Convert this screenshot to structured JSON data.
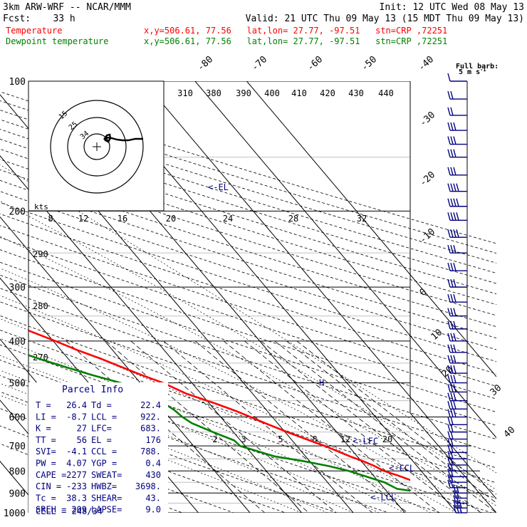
{
  "header": {
    "line1_left": "3km ARW-WRF -- NCAR/MMM",
    "line1_right": "Init: 12 UTC Wed 08 May 13",
    "line2_left": "Fcst:    33 h",
    "line2_right": "Valid: 21 UTC Thu 09 May 13 (15 MDT Thu 09 May 13)",
    "temp_label": "Temperature",
    "temp_info": "x,y=506.61, 77.56   lat,lon= 27.77, -97.51   stn=CRP ,72251",
    "dew_label": "Dewpoint temperature",
    "dew_info": "x,y=506.61, 77.56   lat,lon= 27.77, -97.51   stn=CRP ,72251"
  },
  "colors": {
    "temperature": "#ff0000",
    "dewpoint": "#008000",
    "barbs": "#000080",
    "text": "#000000",
    "lines": "#000000",
    "light": "#888888"
  },
  "barb_key": {
    "title": "Full barb:",
    "unit": "5 m s",
    "exp": "-1"
  },
  "hodograph": {
    "unit_label": "kts",
    "ring_labels": [
      "15",
      "25",
      "34"
    ],
    "center_icon": "crosshair-icon"
  },
  "parcel_info": {
    "title": "Parcel Info",
    "rows": [
      [
        "T  =",
        "26.4",
        "Td =",
        "22.4"
      ],
      [
        "LI =",
        "-8.7",
        "LCL =",
        "922."
      ],
      [
        "K  =",
        "27",
        "LFC=",
        "683."
      ],
      [
        "TT =",
        "56",
        "EL =",
        "176"
      ],
      [
        "SVI=",
        "-4.1",
        "CCL =",
        "788."
      ],
      [
        "PW =",
        "4.07",
        "YGP =",
        "0.4"
      ],
      [
        "CAPE =",
        "2277",
        "SWEAT=",
        "430"
      ],
      [
        "CIN =",
        "-233",
        "HWBZ=",
        "3698."
      ],
      [
        "Tc =",
        "38.3",
        "SHEAR=",
        "43."
      ],
      [
        "SREH =",
        "209",
        "LAPSE=",
        "9.0"
      ]
    ],
    "last_row": "CELL = 248/34"
  },
  "level_labels": {
    "el": "<-EL",
    "lfc": "<-LFC",
    "ccl": "<-CCL",
    "lcl": "<-LCL",
    "marker_h": "H"
  },
  "chart_data": {
    "type": "line",
    "chart_kind": "skew-T log-p sounding",
    "yaxis": {
      "scale": "log-pressure",
      "unit": "hPa",
      "range": [
        1000,
        100
      ],
      "ticks": [
        100,
        200,
        300,
        400,
        500,
        600,
        700,
        800,
        900,
        1000
      ]
    },
    "isotherm_labels": [
      -80,
      -70,
      -60,
      -50,
      -40,
      -30,
      -20,
      -10,
      0,
      10,
      20,
      30,
      40
    ],
    "theta_e_labels": [
      310,
      380,
      390,
      400,
      410,
      420,
      430,
      440
    ],
    "mixing_ratio_labels_top": [
      8,
      12,
      16,
      20,
      24,
      28,
      32
    ],
    "mixing_ratio_labels_low": [
      2,
      3,
      5,
      8,
      12,
      20
    ],
    "dry_adiabat_labels": [
      290,
      280,
      270
    ],
    "series": [
      {
        "name": "Temperature",
        "pressure": [
          1000,
          985,
          970,
          950,
          925,
          900,
          880,
          850,
          820,
          800,
          780,
          760,
          740,
          700,
          680,
          650,
          620,
          600,
          580,
          560,
          530,
          500,
          480,
          460,
          440,
          420,
          400,
          380,
          360,
          340,
          320,
          300,
          280,
          260,
          240,
          220,
          200,
          180,
          160,
          150,
          140,
          130,
          120,
          110,
          100
        ],
        "values": [
          29.0,
          26.2,
          24.6,
          22.5,
          21.4,
          19.8,
          18.6,
          17.2,
          14.8,
          12.8,
          11.8,
          10.4,
          8.6,
          5.4,
          3.4,
          0.4,
          -2.4,
          -4.2,
          -6.2,
          -8.6,
          -12.8,
          -15.6,
          -18.4,
          -21.0,
          -23.6,
          -26.8,
          -29.6,
          -32.8,
          -36.0,
          -39.8,
          -43.4,
          -47.2,
          -51.8,
          -56.0,
          -60.6,
          -65.2,
          -69.0,
          -71.8,
          -70.0,
          -68.0,
          -65.0,
          -63.0,
          -60.0,
          -57.5,
          -55.0
        ]
      },
      {
        "name": "Dewpoint temperature",
        "pressure": [
          1000,
          985,
          970,
          950,
          925,
          900,
          880,
          850,
          820,
          800,
          780,
          760,
          740,
          700,
          680,
          650,
          620,
          600,
          580,
          560,
          530,
          500,
          480,
          460,
          440,
          420,
          400,
          380,
          360,
          340,
          320,
          300,
          280,
          260,
          240,
          220,
          200,
          180,
          160,
          150,
          140,
          130,
          120,
          110,
          100
        ],
        "values": [
          22.5,
          20.0,
          20.8,
          18.8,
          18.4,
          17.4,
          12.4,
          11.0,
          8.0,
          6.0,
          3.0,
          -1.0,
          -6.0,
          -11.0,
          -11.2,
          -14.0,
          -16.6,
          -17.4,
          -17.8,
          -18.6,
          -21.2,
          -23.8,
          -28.0,
          -31.8,
          -35.6,
          -39.2,
          -42.6,
          -45.8,
          -48.6,
          -52.8,
          -57.8,
          -61.6,
          -69.6,
          -74.0,
          -76.0,
          -76.0,
          -76.5,
          -77.0,
          -79.0,
          -80.0,
          -81.0,
          -81.5,
          -82.0,
          -82.5,
          -83.0
        ]
      }
    ],
    "wind_barbs": {
      "note": "right column, one barb per level from 1000 to 100 hPa; flags count full barbs (5 m/s each)",
      "pressure": [
        1000,
        975,
        950,
        925,
        900,
        875,
        850,
        825,
        800,
        775,
        750,
        725,
        700,
        675,
        650,
        625,
        600,
        575,
        550,
        525,
        500,
        475,
        450,
        425,
        400,
        375,
        350,
        325,
        300,
        275,
        250,
        230,
        210,
        195,
        180,
        165,
        150,
        140,
        130,
        120,
        110,
        100
      ],
      "full_barbs": [
        3,
        3,
        2,
        2,
        2,
        2,
        2,
        2,
        2,
        2,
        2,
        2,
        2,
        2,
        2,
        2,
        3,
        3,
        3,
        3,
        3,
        3,
        3,
        3,
        3,
        3,
        3,
        3,
        3,
        3,
        3,
        4,
        4,
        4,
        4,
        3,
        3,
        3,
        3,
        2,
        2,
        1
      ]
    }
  }
}
